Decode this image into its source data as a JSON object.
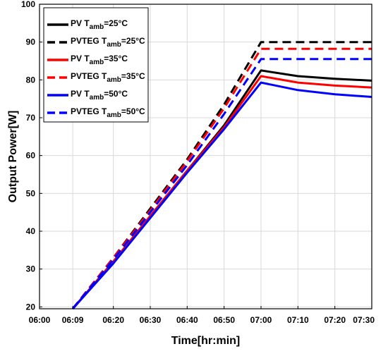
{
  "chart_data": {
    "type": "line",
    "title": "",
    "xlabel": "Time[hr:min]",
    "ylabel": "Output Power[W]",
    "x_ticks": [
      "06:00",
      "06:09",
      "06:20",
      "06:30",
      "06:40",
      "06:50",
      "07:00",
      "07:10",
      "07:20",
      "07:30"
    ],
    "y_ticks": [
      20,
      30,
      40,
      50,
      60,
      70,
      80,
      90,
      100
    ],
    "xlim_minutes": [
      0,
      90
    ],
    "ylim": [
      19.5,
      100
    ],
    "grid": true,
    "legend_position": "top-left",
    "series": [
      {
        "label": "PV T_amb=25°C",
        "legend_prefix": "PV T",
        "legend_sub": "amb",
        "legend_suffix": "=25°C",
        "color": "#000000",
        "dash": false,
        "x": [
          "06:09",
          "06:20",
          "06:30",
          "06:40",
          "06:50",
          "07:00",
          "07:10",
          "07:20",
          "07:30"
        ],
        "y": [
          19.5,
          32,
          44,
          56,
          68,
          82.5,
          81,
          80.3,
          79.8
        ]
      },
      {
        "label": "PVTEG T_amb=25°C",
        "legend_prefix": "PVTEG T",
        "legend_sub": "amb",
        "legend_suffix": "=25°C",
        "color": "#000000",
        "dash": true,
        "x": [
          "06:09",
          "06:20",
          "06:30",
          "06:40",
          "06:50",
          "07:00",
          "07:10",
          "07:20",
          "07:30"
        ],
        "y": [
          19.5,
          33,
          46,
          59,
          73.5,
          90,
          90,
          90,
          90
        ]
      },
      {
        "label": "PV T_amb=35°C",
        "legend_prefix": "PV T",
        "legend_sub": "amb",
        "legend_suffix": "=35°C",
        "color": "#ff0000",
        "dash": false,
        "x": [
          "06:09",
          "06:20",
          "06:30",
          "06:40",
          "06:50",
          "07:00",
          "07:10",
          "07:20",
          "07:30"
        ],
        "y": [
          19.5,
          32,
          44,
          56,
          67.5,
          81,
          79.3,
          78.5,
          78
        ]
      },
      {
        "label": "PVTEG T_amb=35°C",
        "legend_prefix": "PVTEG T",
        "legend_sub": "amb",
        "legend_suffix": "=35°C",
        "color": "#ff0000",
        "dash": true,
        "x": [
          "06:09",
          "06:20",
          "06:30",
          "06:40",
          "06:50",
          "07:00",
          "07:10",
          "07:20",
          "07:30"
        ],
        "y": [
          19.5,
          33,
          45.5,
          58.5,
          72.5,
          88.2,
          88.2,
          88.2,
          88.2
        ]
      },
      {
        "label": "PV T_amb=50°C",
        "legend_prefix": "PV T",
        "legend_sub": "amb",
        "legend_suffix": "=50°C",
        "color": "#0000ff",
        "dash": false,
        "x": [
          "06:09",
          "06:20",
          "06:30",
          "06:40",
          "06:50",
          "07:00",
          "07:10",
          "07:20",
          "07:30"
        ],
        "y": [
          19.5,
          31.5,
          43.5,
          55.5,
          67,
          79.3,
          77.3,
          76.2,
          75.5
        ]
      },
      {
        "label": "PVTEG T_amb=50°C",
        "legend_prefix": "PVTEG T",
        "legend_sub": "amb",
        "legend_suffix": "=50°C",
        "color": "#0000ff",
        "dash": true,
        "x": [
          "06:09",
          "06:20",
          "06:30",
          "06:40",
          "06:50",
          "07:00",
          "07:10",
          "07:20",
          "07:30"
        ],
        "y": [
          19.5,
          32.5,
          45,
          57.5,
          71,
          85.5,
          85.5,
          85.5,
          85.5
        ]
      }
    ]
  }
}
